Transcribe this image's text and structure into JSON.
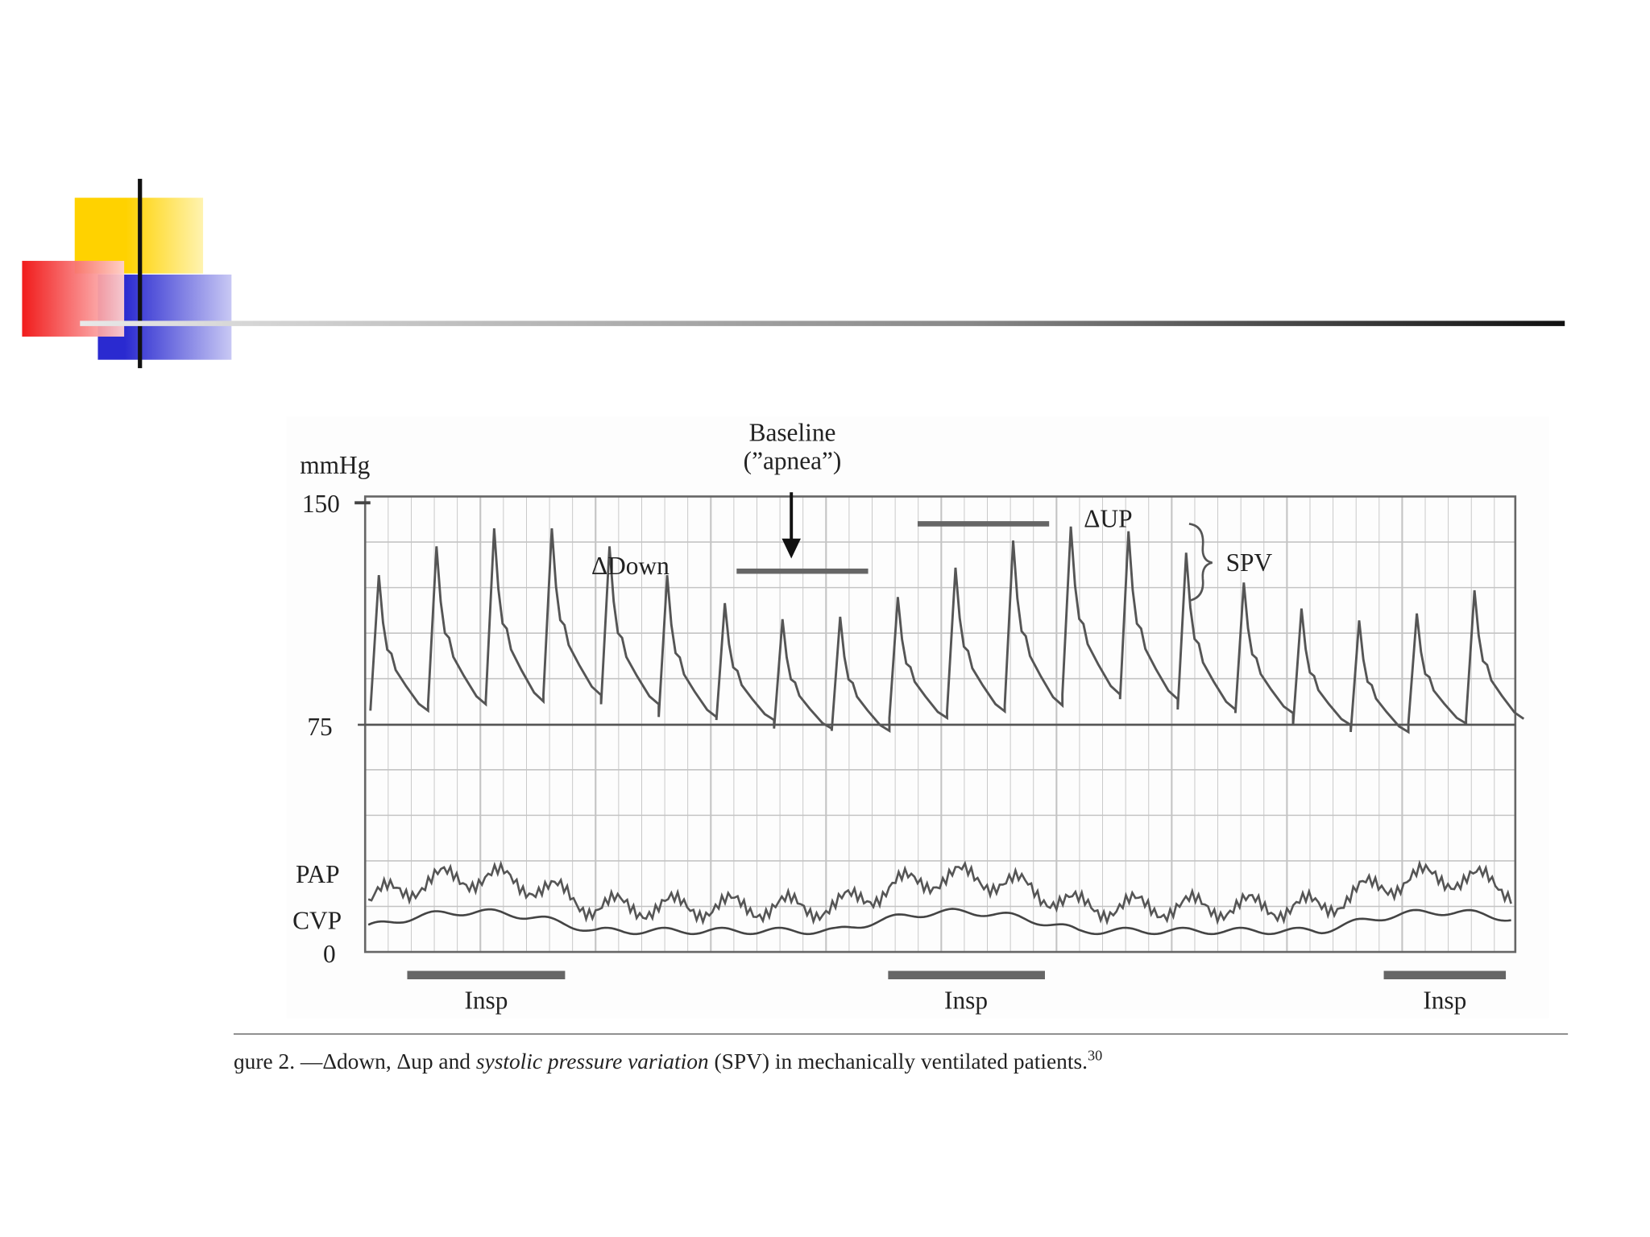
{
  "figure": {
    "unit": "mmHg",
    "tick_labels": [
      "150",
      "75",
      "0"
    ],
    "trace_labels": [
      "PAP",
      "CVP"
    ],
    "annotations": {
      "baseline": "Baseline",
      "apnea": "(”apnea”)",
      "delta_down": "ΔDown",
      "delta_up": "ΔUP",
      "spv": "SPV"
    },
    "insp_labels": [
      "Insp",
      "Insp",
      "Insp"
    ]
  },
  "caption": {
    "lead": "ɡure 2. —Δdown, Δup and ",
    "italic": "systolic pressure variation",
    "rest": " (SPV) in mechanically ventilated patients.",
    "ref": "30"
  }
}
